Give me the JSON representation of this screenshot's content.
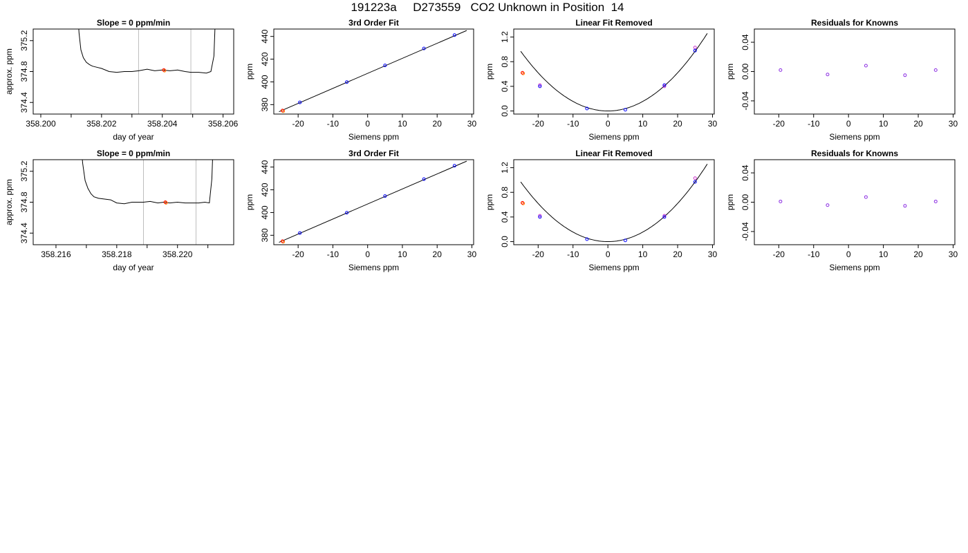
{
  "page": {
    "title": "191223a     D273559   CO2 Unknown in Position  14"
  },
  "colors": {
    "trace": "#000000",
    "window_line": "#bdbdbd",
    "known": "#0000ff",
    "residual": "#8a2be2",
    "unknown": "#ff0000",
    "unknown_alt": "#ff8c00",
    "magenta": "#cc33cc"
  },
  "chart_data": [
    {
      "type": "line",
      "title": "Slope =  0  ppm/min",
      "xlabel": "day of year",
      "ylabel": "approx. ppm",
      "xlim": [
        358.19975,
        358.20635
      ],
      "ylim": [
        374.25,
        375.35
      ],
      "xticks": [
        "358.200",
        "358.202",
        "358.204",
        "358.206"
      ],
      "xtick_values": [
        358.2,
        358.202,
        358.204,
        358.206
      ],
      "xminor_ticks": [
        358.201,
        358.203,
        358.205
      ],
      "yticks": [
        "374.4",
        "374.8",
        "375.2"
      ],
      "ytick_values": [
        374.4,
        374.8,
        375.2
      ],
      "window": [
        358.20322,
        358.20494
      ],
      "trace": {
        "x": [
          358.2012,
          358.20126,
          358.20132,
          358.2014,
          358.2015,
          358.2016,
          358.2017,
          358.2018,
          358.202,
          358.20225,
          358.2025,
          358.20275,
          358.203,
          358.20322,
          358.2035,
          358.20375,
          358.204,
          358.20425,
          358.2045,
          358.20475,
          358.20494,
          358.2052,
          358.20545,
          358.2056,
          358.2057,
          358.20576
        ],
        "y": [
          375.65,
          375.3,
          375.08,
          374.98,
          374.92,
          374.89,
          374.87,
          374.86,
          374.84,
          374.8,
          374.79,
          374.8,
          374.8,
          374.81,
          374.83,
          374.81,
          374.82,
          374.81,
          374.82,
          374.8,
          374.79,
          374.79,
          374.78,
          374.8,
          375.0,
          375.65
        ]
      },
      "unknown_point": {
        "x": 358.20405,
        "y": 374.82
      }
    },
    {
      "type": "scatter",
      "title": "3rd Order Fit",
      "xlabel": "Siemens ppm",
      "ylabel": "ppm",
      "xlim": [
        -27,
        30.5
      ],
      "ylim": [
        371.7,
        446.5
      ],
      "xticks": [
        "-20",
        "-10",
        "0",
        "10",
        "20",
        "30"
      ],
      "xtick_values": [
        -20,
        -10,
        0,
        10,
        20,
        30
      ],
      "yticks": [
        "380",
        "400",
        "420",
        "440"
      ],
      "ytick_values": [
        380,
        400,
        420,
        440
      ],
      "fit_line": {
        "x": [
          -25.5,
          28.5
        ],
        "y": [
          373.8,
          445.2
        ]
      },
      "known_points": {
        "x": [
          -19.5,
          -6,
          5,
          16.2,
          25
        ],
        "y": [
          382,
          399.8,
          414.5,
          429.4,
          441.2
        ]
      },
      "unknown_point": {
        "x": -24.5,
        "y": 374.8
      }
    },
    {
      "type": "scatter",
      "title": "Linear Fit Removed",
      "xlabel": "Siemens ppm",
      "ylabel": "ppm",
      "xlim": [
        -27,
        30.5
      ],
      "ylim": [
        -0.05,
        1.33
      ],
      "xticks": [
        "-20",
        "-10",
        "0",
        "10",
        "20",
        "30"
      ],
      "xtick_values": [
        -20,
        -10,
        0,
        10,
        20,
        30
      ],
      "yticks": [
        "0.0",
        "0.4",
        "0.8",
        "1.2"
      ],
      "ytick_values": [
        0,
        0.4,
        0.8,
        1.2
      ],
      "fit_curve": {
        "a": 0.00155,
        "x_range": [
          -25,
          28.5
        ]
      },
      "known_points": {
        "x": [
          -19.5,
          -6,
          5,
          16.2,
          25
        ],
        "y": [
          0.4,
          0.04,
          0.02,
          0.42,
          0.98
        ]
      },
      "alt_points": {
        "x": [
          -19.5,
          16.2,
          25
        ],
        "y": [
          0.42,
          0.4,
          1.03
        ]
      },
      "unknown_point": {
        "x": -24.5,
        "y": 0.62
      }
    },
    {
      "type": "scatter",
      "title": "Residuals for Knowns",
      "xlabel": "Siemens ppm",
      "ylabel": "ppm",
      "xlim": [
        -27,
        30.5
      ],
      "ylim": [
        -0.058,
        0.058
      ],
      "xticks": [
        "-20",
        "-10",
        "0",
        "10",
        "20",
        "30"
      ],
      "xtick_values": [
        -20,
        -10,
        0,
        10,
        20,
        30
      ],
      "yticks": [
        "-0.04",
        "0.00",
        "0.04"
      ],
      "ytick_values": [
        -0.04,
        0,
        0.04
      ],
      "known_points": {
        "x": [
          -19.5,
          -6,
          5,
          16.2,
          25
        ],
        "y": [
          0.002,
          -0.004,
          0.008,
          -0.005,
          0.002
        ]
      }
    },
    {
      "type": "line",
      "title": "Slope =  0  ppm/min",
      "xlabel": "day of year",
      "ylabel": "approx. ppm",
      "xlim": [
        358.21525,
        358.22185
      ],
      "ylim": [
        374.25,
        375.35
      ],
      "xticks": [
        "358.216",
        "358.218",
        "358.220"
      ],
      "xtick_values": [
        358.216,
        358.218,
        358.22
      ],
      "xminor_ticks": [
        358.217,
        358.219,
        358.221
      ],
      "yticks": [
        "374.4",
        "374.8",
        "375.2"
      ],
      "ytick_values": [
        374.4,
        374.8,
        375.2
      ],
      "window": [
        358.21888,
        358.22061
      ],
      "trace": {
        "x": [
          358.2168,
          358.21688,
          358.21696,
          358.21705,
          358.21715,
          358.21725,
          358.2174,
          358.2176,
          358.2178,
          358.218,
          358.21825,
          358.2185,
          358.2187,
          358.21888,
          358.2191,
          358.21935,
          358.21955,
          358.21975,
          358.22,
          358.22025,
          358.2205,
          358.2207,
          358.2209,
          358.22105,
          358.22113,
          358.22118
        ],
        "y": [
          375.65,
          375.3,
          375.08,
          374.98,
          374.91,
          374.87,
          374.85,
          374.84,
          374.83,
          374.79,
          374.78,
          374.8,
          374.8,
          374.8,
          374.81,
          374.79,
          374.8,
          374.79,
          374.8,
          374.79,
          374.79,
          374.79,
          374.8,
          374.79,
          375.1,
          375.65
        ]
      },
      "unknown_point": {
        "x": 358.2196,
        "y": 374.8
      }
    },
    {
      "type": "scatter",
      "title": "3rd Order Fit",
      "xlabel": "Siemens ppm",
      "ylabel": "ppm",
      "xlim": [
        -27,
        30.5
      ],
      "ylim": [
        371.7,
        446.5
      ],
      "xticks": [
        "-20",
        "-10",
        "0",
        "10",
        "20",
        "30"
      ],
      "xtick_values": [
        -20,
        -10,
        0,
        10,
        20,
        30
      ],
      "yticks": [
        "380",
        "400",
        "420",
        "440"
      ],
      "ytick_values": [
        380,
        400,
        420,
        440
      ],
      "fit_line": {
        "x": [
          -25.5,
          28.5
        ],
        "y": [
          373.8,
          445.2
        ]
      },
      "known_points": {
        "x": [
          -19.5,
          -6,
          5,
          16.2,
          25
        ],
        "y": [
          382,
          399.8,
          414.5,
          429.4,
          441.2
        ]
      },
      "unknown_point": {
        "x": -24.5,
        "y": 374.8
      }
    },
    {
      "type": "scatter",
      "title": "Linear Fit Removed",
      "xlabel": "Siemens ppm",
      "ylabel": "ppm",
      "xlim": [
        -27,
        30.5
      ],
      "ylim": [
        -0.05,
        1.33
      ],
      "xticks": [
        "-20",
        "-10",
        "0",
        "10",
        "20",
        "30"
      ],
      "xtick_values": [
        -20,
        -10,
        0,
        10,
        20,
        30
      ],
      "yticks": [
        "0.0",
        "0.4",
        "0.8",
        "1.2"
      ],
      "ytick_values": [
        0,
        0.4,
        0.8,
        1.2
      ],
      "fit_curve": {
        "a": 0.00155,
        "x_range": [
          -25,
          28.5
        ]
      },
      "known_points": {
        "x": [
          -19.5,
          -6,
          5,
          16.2,
          25
        ],
        "y": [
          0.4,
          0.04,
          0.02,
          0.4,
          0.97
        ]
      },
      "alt_points": {
        "x": [
          -19.5,
          16.2,
          25
        ],
        "y": [
          0.42,
          0.42,
          1.03
        ]
      },
      "unknown_point": {
        "x": -24.5,
        "y": 0.63
      }
    },
    {
      "type": "scatter",
      "title": "Residuals for Knowns",
      "xlabel": "Siemens ppm",
      "ylabel": "ppm",
      "xlim": [
        -27,
        30.5
      ],
      "ylim": [
        -0.058,
        0.058
      ],
      "xticks": [
        "-20",
        "-10",
        "0",
        "10",
        "20",
        "30"
      ],
      "xtick_values": [
        -20,
        -10,
        0,
        10,
        20,
        30
      ],
      "yticks": [
        "-0.04",
        "0.00",
        "0.04"
      ],
      "ytick_values": [
        -0.04,
        0,
        0.04
      ],
      "known_points": {
        "x": [
          -19.5,
          -6,
          5,
          16.2,
          25
        ],
        "y": [
          0.001,
          -0.004,
          0.007,
          -0.005,
          0.001
        ]
      }
    }
  ]
}
